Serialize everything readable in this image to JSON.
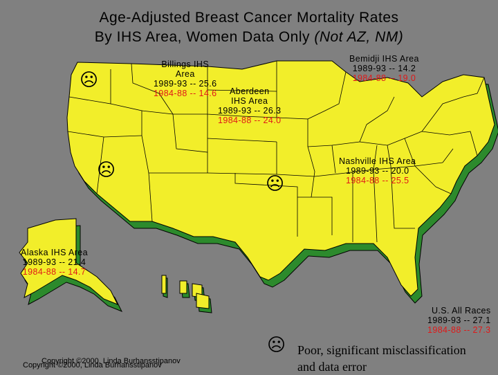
{
  "title": {
    "line1": "Age-Adjusted Breast Cancer Mortality Rates",
    "line2_main": "By IHS Area, Women Data Only ",
    "line2_italic": "(Not AZ, NM)"
  },
  "areas": {
    "billings": {
      "name1": "Billings IHS",
      "name2": "Area",
      "r1": "1989-93 -- 25.6",
      "r2": "1984-88 -- 14.6"
    },
    "aberdeen": {
      "name1": "Aberdeen",
      "name2": "IHS Area",
      "r1": "1989-93 -- 26.3",
      "r2": "1984-88 -- 24.0"
    },
    "bemidji": {
      "name1": "Bemidji IHS Area",
      "r1": "1989-93 -- 14.2",
      "r2": "1984-88 -- 19.0"
    },
    "nashville": {
      "name1": "Nashville IHS Area",
      "r1": "1989-93 -- 20.0",
      "r2": "1984-88 -- 25.5"
    },
    "alaska": {
      "name1": "Alaska IHS Area",
      "r1": "1989-93 -- 21.4",
      "r2": "1984-88 -- 14.7"
    },
    "us": {
      "name1": "U.S. All Races",
      "r1": "1989-93 -- 27.1",
      "r2": "1984-88 -- 27.3"
    }
  },
  "frown_symbol": "☹",
  "legend": {
    "line1": "Poor, significant misclassification",
    "line2": "and data error"
  },
  "copyright": "Copyright ©2000, Linda Burhansstipanov",
  "colors": {
    "land": "#f2ee2a",
    "extrusion": "#2c8a2c",
    "border": "#000000",
    "background": "#808080",
    "red": "#e01818"
  }
}
